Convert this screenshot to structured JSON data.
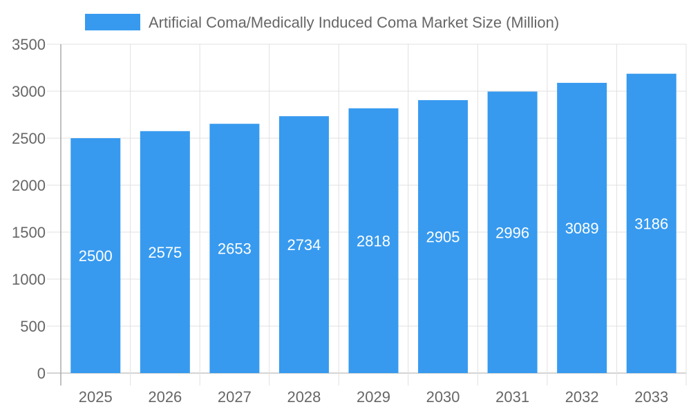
{
  "chart_data": {
    "type": "bar",
    "categories": [
      "2025",
      "2026",
      "2027",
      "2028",
      "2029",
      "2030",
      "2031",
      "2032",
      "2033"
    ],
    "series": [
      {
        "name": "Artificial Coma/Medically Induced Coma Market Size (Million)",
        "values": [
          2500,
          2575,
          2653,
          2734,
          2818,
          2905,
          2996,
          3089,
          3186
        ]
      }
    ],
    "ylim": [
      0,
      3500
    ],
    "yticks": [
      0,
      500,
      1000,
      1500,
      2000,
      2500,
      3000,
      3500
    ],
    "grid": true,
    "legend": "top",
    "data_labels": true,
    "colors": {
      "bar": "#379AEF",
      "text": "#666666",
      "grid": "#E0E0E0",
      "axis": "#AAAAAA",
      "label": "#FFFFFF"
    }
  }
}
